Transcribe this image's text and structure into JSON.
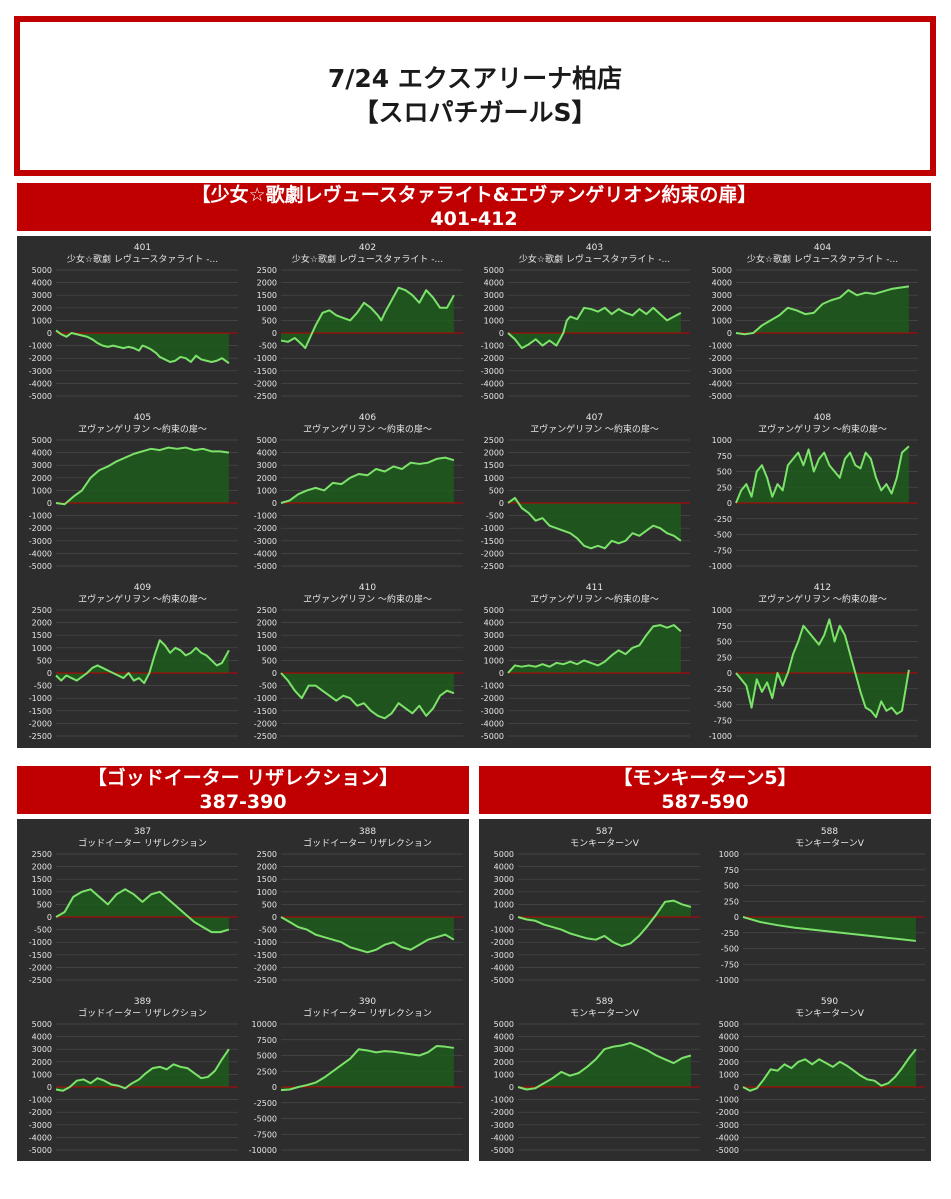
{
  "header": {
    "line1": "7/24 エクスアリーナ柏店",
    "line2": "【スロパチガールS】"
  },
  "sections": [
    {
      "title": "【少女☆歌劇レヴュースタァライト&エヴァンゲリオン約束の扉】",
      "range": "401-412"
    },
    {
      "title": "【ゴッドイーター リザレクション】",
      "range": "387-390"
    },
    {
      "title": "【モンキーターン5】",
      "range": "587-590"
    }
  ],
  "colors": {
    "banner": "#c00000",
    "panel": "#2d2d2d",
    "line": "#7be36a",
    "fill": "#1f5c1c",
    "zero": "#c00000",
    "grid": "#4a4a4a",
    "text": "#e6e6e6"
  },
  "chart_data": [
    {
      "type": "area",
      "machine": "401",
      "model": "少女☆歌劇 レヴュースタァライト -...",
      "ylim": [
        -5000,
        5000
      ],
      "step": 1000,
      "x": [
        0,
        3,
        6,
        9,
        12,
        15,
        18,
        21,
        24,
        27,
        30,
        33,
        36,
        39,
        42,
        45,
        48,
        50,
        52,
        55,
        58,
        60,
        63,
        66,
        69,
        72,
        75,
        78,
        81,
        84,
        87,
        90,
        93,
        96,
        100
      ],
      "y": [
        200,
        -100,
        -300,
        0,
        -100,
        -200,
        -300,
        -500,
        -800,
        -1000,
        -1100,
        -1000,
        -1100,
        -1200,
        -1100,
        -1200,
        -1400,
        -1000,
        -1100,
        -1300,
        -1600,
        -1900,
        -2100,
        -2300,
        -2200,
        -1900,
        -2000,
        -2300,
        -1800,
        -2100,
        -2200,
        -2300,
        -2200,
        -2000,
        -2400
      ]
    },
    {
      "type": "area",
      "machine": "402",
      "model": "少女☆歌劇 レヴュースタァライト -...",
      "ylim": [
        -2500,
        2500
      ],
      "step": 500,
      "x": [
        0,
        4,
        8,
        12,
        14,
        16,
        18,
        20,
        24,
        28,
        32,
        36,
        40,
        44,
        48,
        52,
        56,
        58,
        60,
        64,
        68,
        72,
        76,
        80,
        84,
        88,
        92,
        96,
        100
      ],
      "y": [
        -300,
        -350,
        -200,
        -450,
        -600,
        -300,
        0,
        300,
        800,
        900,
        700,
        600,
        500,
        800,
        1200,
        1000,
        700,
        500,
        800,
        1300,
        1800,
        1700,
        1500,
        1200,
        1700,
        1400,
        1000,
        1000,
        1500
      ]
    },
    {
      "type": "area",
      "machine": "403",
      "model": "少女☆歌劇 レヴュースタァライト -...",
      "ylim": [
        -5000,
        5000
      ],
      "step": 1000,
      "x": [
        0,
        4,
        8,
        12,
        16,
        20,
        24,
        28,
        32,
        34,
        36,
        40,
        44,
        48,
        52,
        56,
        60,
        64,
        68,
        72,
        76,
        80,
        84,
        88,
        92,
        96,
        100
      ],
      "y": [
        0,
        -500,
        -1200,
        -900,
        -500,
        -1000,
        -600,
        -1000,
        0,
        1000,
        1300,
        1100,
        2000,
        1900,
        1700,
        2000,
        1500,
        1900,
        1600,
        1400,
        1900,
        1500,
        2000,
        1500,
        1000,
        1300,
        1600
      ]
    },
    {
      "type": "area",
      "machine": "404",
      "model": "少女☆歌劇 レヴュースタァライト -...",
      "ylim": [
        -5000,
        5000
      ],
      "step": 1000,
      "x": [
        0,
        5,
        10,
        15,
        20,
        25,
        30,
        35,
        40,
        45,
        50,
        55,
        60,
        65,
        70,
        75,
        80,
        85,
        90,
        95,
        100
      ],
      "y": [
        0,
        -100,
        0,
        600,
        1000,
        1400,
        2000,
        1800,
        1500,
        1600,
        2300,
        2600,
        2800,
        3400,
        3000,
        3200,
        3100,
        3300,
        3500,
        3600,
        3700
      ]
    },
    {
      "type": "area",
      "machine": "405",
      "model": "ヱヴァンゲリヲン ～約束の扉～",
      "ylim": [
        -5000,
        5000
      ],
      "step": 1000,
      "x": [
        0,
        5,
        10,
        15,
        20,
        25,
        30,
        35,
        40,
        45,
        50,
        55,
        60,
        65,
        70,
        75,
        80,
        85,
        90,
        95,
        100
      ],
      "y": [
        0,
        -100,
        500,
        1000,
        2000,
        2600,
        2900,
        3300,
        3600,
        3900,
        4100,
        4300,
        4200,
        4400,
        4300,
        4400,
        4200,
        4300,
        4100,
        4100,
        4000
      ]
    },
    {
      "type": "area",
      "machine": "406",
      "model": "ヱヴァンゲリヲン ～約束の扉～",
      "ylim": [
        -5000,
        5000
      ],
      "step": 1000,
      "x": [
        0,
        5,
        10,
        15,
        20,
        25,
        30,
        35,
        40,
        45,
        50,
        55,
        60,
        65,
        70,
        75,
        80,
        85,
        90,
        95,
        100
      ],
      "y": [
        0,
        200,
        700,
        1000,
        1200,
        1000,
        1600,
        1500,
        2000,
        2300,
        2200,
        2700,
        2500,
        2900,
        2700,
        3200,
        3100,
        3200,
        3500,
        3600,
        3400
      ]
    },
    {
      "type": "area",
      "machine": "407",
      "model": "ヱヴァンゲリヲン ～約束の扉～",
      "ylim": [
        -2500,
        2500
      ],
      "step": 500,
      "x": [
        0,
        4,
        8,
        12,
        16,
        20,
        24,
        28,
        32,
        36,
        40,
        44,
        48,
        52,
        56,
        60,
        64,
        68,
        72,
        76,
        80,
        84,
        88,
        92,
        96,
        100
      ],
      "y": [
        0,
        200,
        -200,
        -400,
        -700,
        -600,
        -900,
        -1000,
        -1100,
        -1200,
        -1400,
        -1700,
        -1800,
        -1700,
        -1800,
        -1500,
        -1600,
        -1500,
        -1200,
        -1300,
        -1100,
        -900,
        -1000,
        -1200,
        -1300,
        -1500
      ]
    },
    {
      "type": "area",
      "machine": "408",
      "model": "ヱヴァンゲリヲン ～約束の扉～",
      "ylim": [
        -1000,
        1000
      ],
      "step": 250,
      "x": [
        0,
        3,
        6,
        9,
        12,
        15,
        18,
        21,
        24,
        27,
        30,
        33,
        36,
        39,
        42,
        45,
        48,
        51,
        54,
        57,
        60,
        63,
        66,
        69,
        72,
        75,
        78,
        81,
        84,
        87,
        90,
        93,
        96,
        100
      ],
      "y": [
        0,
        200,
        300,
        100,
        500,
        600,
        400,
        100,
        300,
        200,
        600,
        700,
        800,
        600,
        850,
        500,
        700,
        800,
        600,
        500,
        400,
        700,
        800,
        600,
        550,
        800,
        700,
        400,
        200,
        300,
        150,
        400,
        800,
        900
      ]
    },
    {
      "type": "area",
      "machine": "409",
      "model": "ヱヴァンゲリヲン ～約束の扉～",
      "ylim": [
        -2500,
        2500
      ],
      "step": 500,
      "x": [
        0,
        3,
        6,
        9,
        12,
        15,
        18,
        21,
        24,
        27,
        30,
        33,
        36,
        39,
        42,
        45,
        48,
        51,
        54,
        57,
        60,
        63,
        66,
        69,
        72,
        75,
        78,
        81,
        84,
        87,
        90,
        93,
        96,
        100
      ],
      "y": [
        -100,
        -300,
        -100,
        -200,
        -300,
        -150,
        0,
        200,
        300,
        200,
        100,
        0,
        -100,
        -200,
        0,
        -300,
        -200,
        -400,
        0,
        700,
        1300,
        1100,
        800,
        1000,
        900,
        700,
        800,
        1000,
        800,
        700,
        500,
        300,
        400,
        900
      ]
    },
    {
      "type": "area",
      "machine": "410",
      "model": "ヱヴァンゲリヲン ～約束の扉～",
      "ylim": [
        -2500,
        2500
      ],
      "step": 500,
      "x": [
        0,
        4,
        8,
        12,
        16,
        20,
        24,
        28,
        32,
        36,
        40,
        44,
        48,
        52,
        56,
        60,
        64,
        68,
        72,
        76,
        80,
        84,
        88,
        92,
        96,
        100
      ],
      "y": [
        0,
        -300,
        -700,
        -1000,
        -500,
        -500,
        -700,
        -900,
        -1100,
        -900,
        -1000,
        -1300,
        -1200,
        -1500,
        -1700,
        -1800,
        -1600,
        -1200,
        -1400,
        -1600,
        -1300,
        -1700,
        -1400,
        -900,
        -700,
        -800
      ]
    },
    {
      "type": "area",
      "machine": "411",
      "model": "ヱヴァンゲリヲン ～約束の扉～",
      "ylim": [
        -5000,
        5000
      ],
      "step": 1000,
      "x": [
        0,
        4,
        8,
        12,
        16,
        20,
        24,
        28,
        32,
        36,
        40,
        44,
        48,
        52,
        56,
        60,
        64,
        68,
        72,
        76,
        80,
        84,
        88,
        92,
        96,
        100
      ],
      "y": [
        0,
        600,
        500,
        600,
        500,
        700,
        500,
        800,
        700,
        900,
        700,
        1000,
        800,
        600,
        900,
        1400,
        1800,
        1500,
        2000,
        2200,
        3000,
        3700,
        3800,
        3600,
        3800,
        3300
      ]
    },
    {
      "type": "area",
      "machine": "412",
      "model": "ヱヴァンゲリヲン ～約束の扉～",
      "ylim": [
        -1000,
        1000
      ],
      "step": 250,
      "x": [
        0,
        3,
        6,
        9,
        12,
        15,
        18,
        21,
        24,
        27,
        30,
        33,
        36,
        39,
        42,
        45,
        48,
        51,
        54,
        57,
        60,
        63,
        66,
        69,
        72,
        75,
        78,
        81,
        84,
        87,
        90,
        93,
        96,
        100
      ],
      "y": [
        0,
        -100,
        -200,
        -550,
        -100,
        -300,
        -150,
        -400,
        0,
        -200,
        0,
        300,
        500,
        750,
        650,
        550,
        450,
        600,
        850,
        500,
        750,
        600,
        300,
        0,
        -300,
        -550,
        -600,
        -700,
        -450,
        -600,
        -550,
        -650,
        -600,
        50
      ]
    },
    {
      "type": "area",
      "machine": "387",
      "model": "ゴッドイーター リザレクション",
      "ylim": [
        -2500,
        2500
      ],
      "step": 500,
      "x": [
        0,
        5,
        10,
        15,
        20,
        25,
        30,
        35,
        40,
        45,
        50,
        55,
        60,
        65,
        70,
        75,
        80,
        85,
        90,
        95,
        100
      ],
      "y": [
        0,
        200,
        800,
        1000,
        1100,
        800,
        500,
        900,
        1100,
        900,
        600,
        900,
        1000,
        700,
        400,
        100,
        -200,
        -400,
        -600,
        -600,
        -500
      ]
    },
    {
      "type": "area",
      "machine": "388",
      "model": "ゴッドイーター リザレクション",
      "ylim": [
        -2500,
        2500
      ],
      "step": 500,
      "x": [
        0,
        5,
        10,
        15,
        20,
        25,
        30,
        35,
        40,
        45,
        50,
        55,
        60,
        65,
        70,
        75,
        80,
        85,
        90,
        95,
        100
      ],
      "y": [
        0,
        -200,
        -400,
        -500,
        -700,
        -800,
        -900,
        -1000,
        -1200,
        -1300,
        -1400,
        -1300,
        -1100,
        -1000,
        -1200,
        -1300,
        -1100,
        -900,
        -800,
        -700,
        -900
      ]
    },
    {
      "type": "area",
      "machine": "389",
      "model": "ゴッドイーター リザレクション",
      "ylim": [
        -5000,
        5000
      ],
      "step": 1000,
      "x": [
        0,
        4,
        8,
        12,
        16,
        20,
        24,
        28,
        32,
        36,
        40,
        44,
        48,
        52,
        56,
        60,
        64,
        68,
        72,
        76,
        80,
        84,
        88,
        92,
        96,
        100
      ],
      "y": [
        -200,
        -300,
        0,
        500,
        600,
        300,
        700,
        500,
        200,
        100,
        -100,
        300,
        600,
        1100,
        1500,
        1600,
        1400,
        1800,
        1600,
        1500,
        1100,
        700,
        800,
        1300,
        2200,
        3000
      ]
    },
    {
      "type": "area",
      "machine": "390",
      "model": "ゴッドイーター リザレクション",
      "ylim": [
        -10000,
        10000
      ],
      "step": 2500,
      "x": [
        0,
        5,
        10,
        15,
        20,
        25,
        30,
        35,
        40,
        45,
        50,
        55,
        60,
        65,
        70,
        75,
        80,
        85,
        90,
        95,
        100
      ],
      "y": [
        -500,
        -400,
        0,
        300,
        700,
        1500,
        2500,
        3500,
        4500,
        6000,
        5800,
        5500,
        5700,
        5600,
        5400,
        5200,
        5000,
        5500,
        6500,
        6400,
        6200
      ]
    },
    {
      "type": "area",
      "machine": "587",
      "model": "モンキーターンV",
      "ylim": [
        -5000,
        5000
      ],
      "step": 1000,
      "x": [
        0,
        5,
        10,
        15,
        20,
        25,
        30,
        35,
        40,
        45,
        50,
        55,
        60,
        65,
        70,
        75,
        80,
        85,
        90,
        95,
        100
      ],
      "y": [
        0,
        -200,
        -300,
        -600,
        -800,
        -1000,
        -1300,
        -1500,
        -1700,
        -1800,
        -1500,
        -2000,
        -2300,
        -2100,
        -1500,
        -700,
        200,
        1200,
        1300,
        1000,
        800
      ]
    },
    {
      "type": "area",
      "machine": "588",
      "model": "モンキーターンV",
      "ylim": [
        -1000,
        1000
      ],
      "step": 250,
      "x": [
        0,
        10,
        20,
        30,
        40,
        50,
        60,
        70,
        80,
        90,
        100
      ],
      "y": [
        0,
        -80,
        -130,
        -170,
        -200,
        -230,
        -260,
        -290,
        -320,
        -350,
        -380
      ]
    },
    {
      "type": "area",
      "machine": "589",
      "model": "モンキーターンV",
      "ylim": [
        -5000,
        5000
      ],
      "step": 1000,
      "x": [
        0,
        5,
        10,
        15,
        20,
        25,
        30,
        35,
        40,
        45,
        50,
        55,
        60,
        65,
        70,
        75,
        80,
        85,
        90,
        95,
        100
      ],
      "y": [
        0,
        -200,
        -100,
        300,
        700,
        1200,
        900,
        1100,
        1600,
        2200,
        3000,
        3200,
        3300,
        3500,
        3200,
        2900,
        2500,
        2200,
        1900,
        2300,
        2500
      ]
    },
    {
      "type": "area",
      "machine": "590",
      "model": "モンキーターンV",
      "ylim": [
        -5000,
        5000
      ],
      "step": 1000,
      "x": [
        0,
        4,
        8,
        12,
        16,
        20,
        24,
        28,
        32,
        36,
        40,
        44,
        48,
        52,
        56,
        60,
        64,
        68,
        72,
        76,
        80,
        84,
        88,
        92,
        96,
        100
      ],
      "y": [
        0,
        -300,
        -100,
        600,
        1400,
        1300,
        1800,
        1500,
        2000,
        2200,
        1800,
        2200,
        1900,
        1600,
        2000,
        1700,
        1300,
        900,
        600,
        500,
        100,
        300,
        800,
        1500,
        2300,
        3000
      ]
    }
  ]
}
